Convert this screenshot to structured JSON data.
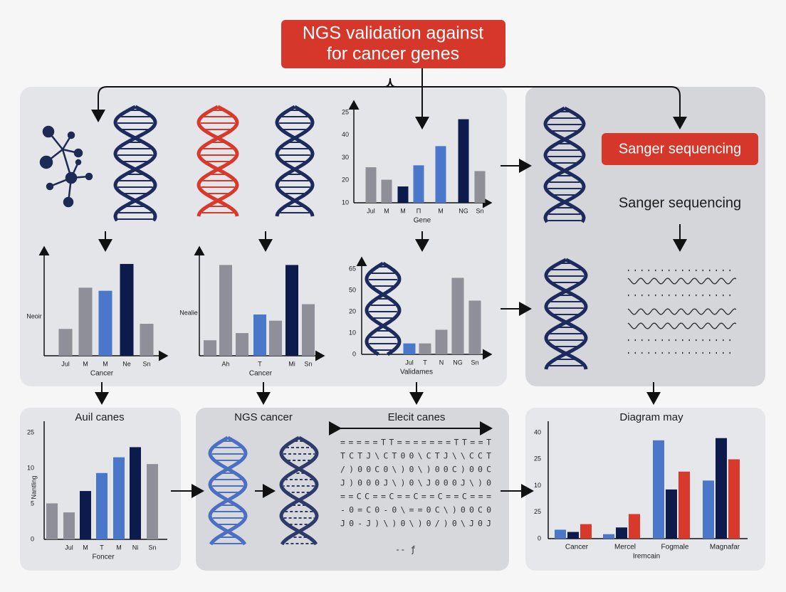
{
  "title_lines": [
    "NGS validation against",
    "for cancer genes"
  ],
  "sanger_badge": "Sanger sequencing",
  "sanger_label": "Sanger sequencing",
  "bottom_headings": [
    "NGS cancer",
    "Elecit canes"
  ],
  "glyph_rows": [
    "= = = = = T T = = = = = = = T T = = T",
    "T C T J \\ C T 0 0 \\ C T J \\ \\ C C T",
    "/ ) 0 0 C 0 \\ ) 0 \\ ) 0 0 C ) 0 0 C",
    "J ) 0 0 0 J \\ ) 0 \\ J 0 0 0 J \\ ) 0",
    "= = C C = = C = = C = = C = = C = = =",
    "- 0 = C 0 - 0 \\ = = 0 C \\ ) 0 0 C 0",
    "J 0 - J ) \\ ) 0 \\ ) 0 / ) 0 \\ J 0 J"
  ],
  "glyph_tail": "--  ƒ",
  "charts": [
    {
      "tick_labels": [
        "25",
        "40",
        "30",
        "20",
        "10"
      ],
      "categories": [
        "Jul",
        "M",
        "M",
        "Π",
        "M",
        "NG",
        "Sn"
      ],
      "xlabel": "Gene",
      "ylim": [
        0,
        100
      ],
      "values": [
        37,
        24,
        17,
        39,
        59,
        87,
        33
      ],
      "colors": [
        "#8e8f99",
        "#8e8f99",
        "#0d1b4c",
        "#4a77c9",
        "#4a77c9",
        "#0d1b4c",
        "#8e8f99"
      ]
    },
    {
      "ylabel": "Neoir",
      "categories": [
        "Jul",
        "M",
        "M",
        "Ne",
        "Sn"
      ],
      "xlabel": "Cancer",
      "ylim": [
        0,
        100
      ],
      "values": [
        26,
        66,
        63,
        89,
        31
      ],
      "colors": [
        "#8e8f99",
        "#8e8f99",
        "#4a77c9",
        "#0d1b4c",
        "#8e8f99"
      ]
    },
    {
      "ylabel": "Nealie",
      "categories": [
        null,
        "Ah",
        null,
        "T",
        null,
        "Mi",
        "Sn"
      ],
      "xlabel": "Cancer",
      "ylim": [
        0,
        100
      ],
      "values": [
        15,
        88,
        22,
        40,
        34,
        88,
        50
      ],
      "colors": [
        "#8e8f99",
        "#8e8f99",
        "#8e8f99",
        "#4a77c9",
        "#8e8f99",
        "#0d1b4c",
        "#8e8f99"
      ]
    },
    {
      "tick_labels": [
        "65",
        "50",
        "20",
        "10",
        "0"
      ],
      "categories": [
        "Jul",
        "T",
        "N",
        "NG",
        "Sn"
      ],
      "xlabel": "Validames",
      "ylim": [
        0,
        100
      ],
      "values": [
        12,
        12,
        27,
        84,
        59
      ],
      "colors": [
        "#4a77c9",
        "#8e8f99",
        "#8e8f99",
        "#8e8f99",
        "#8e8f99"
      ]
    },
    {
      "title": "Auil canes",
      "ylabel": "Nantling",
      "tick_labels": [
        "25",
        "10",
        "5",
        "0"
      ],
      "categories": [
        null,
        "Jul",
        "M",
        "T",
        "M",
        "Ni",
        "Sn"
      ],
      "xlabel": "Foncer",
      "ylim": [
        0,
        100
      ],
      "values": [
        32,
        24,
        43,
        59,
        73,
        82,
        67
      ],
      "colors": [
        "#8e8f99",
        "#8e8f99",
        "#0d1b4c",
        "#4a77c9",
        "#4a77c9",
        "#0d1b4c",
        "#8e8f99"
      ]
    },
    {
      "title": "Diagram may",
      "tick_labels": [
        "40",
        "25",
        "10",
        "25",
        "0"
      ],
      "categories": [
        "Cancer",
        "Mercel",
        "Fogmale",
        "Magnafar"
      ],
      "xlabel": "Iremcain",
      "ylim": [
        0,
        100
      ],
      "series": [
        {
          "color": "#4a77c9",
          "values": [
            8,
            4,
            88,
            52
          ]
        },
        {
          "color": "#0d1b4c",
          "values": [
            6,
            10,
            44,
            90
          ]
        },
        {
          "color": "#d9392b",
          "values": [
            13,
            22,
            60,
            71
          ]
        }
      ]
    }
  ]
}
